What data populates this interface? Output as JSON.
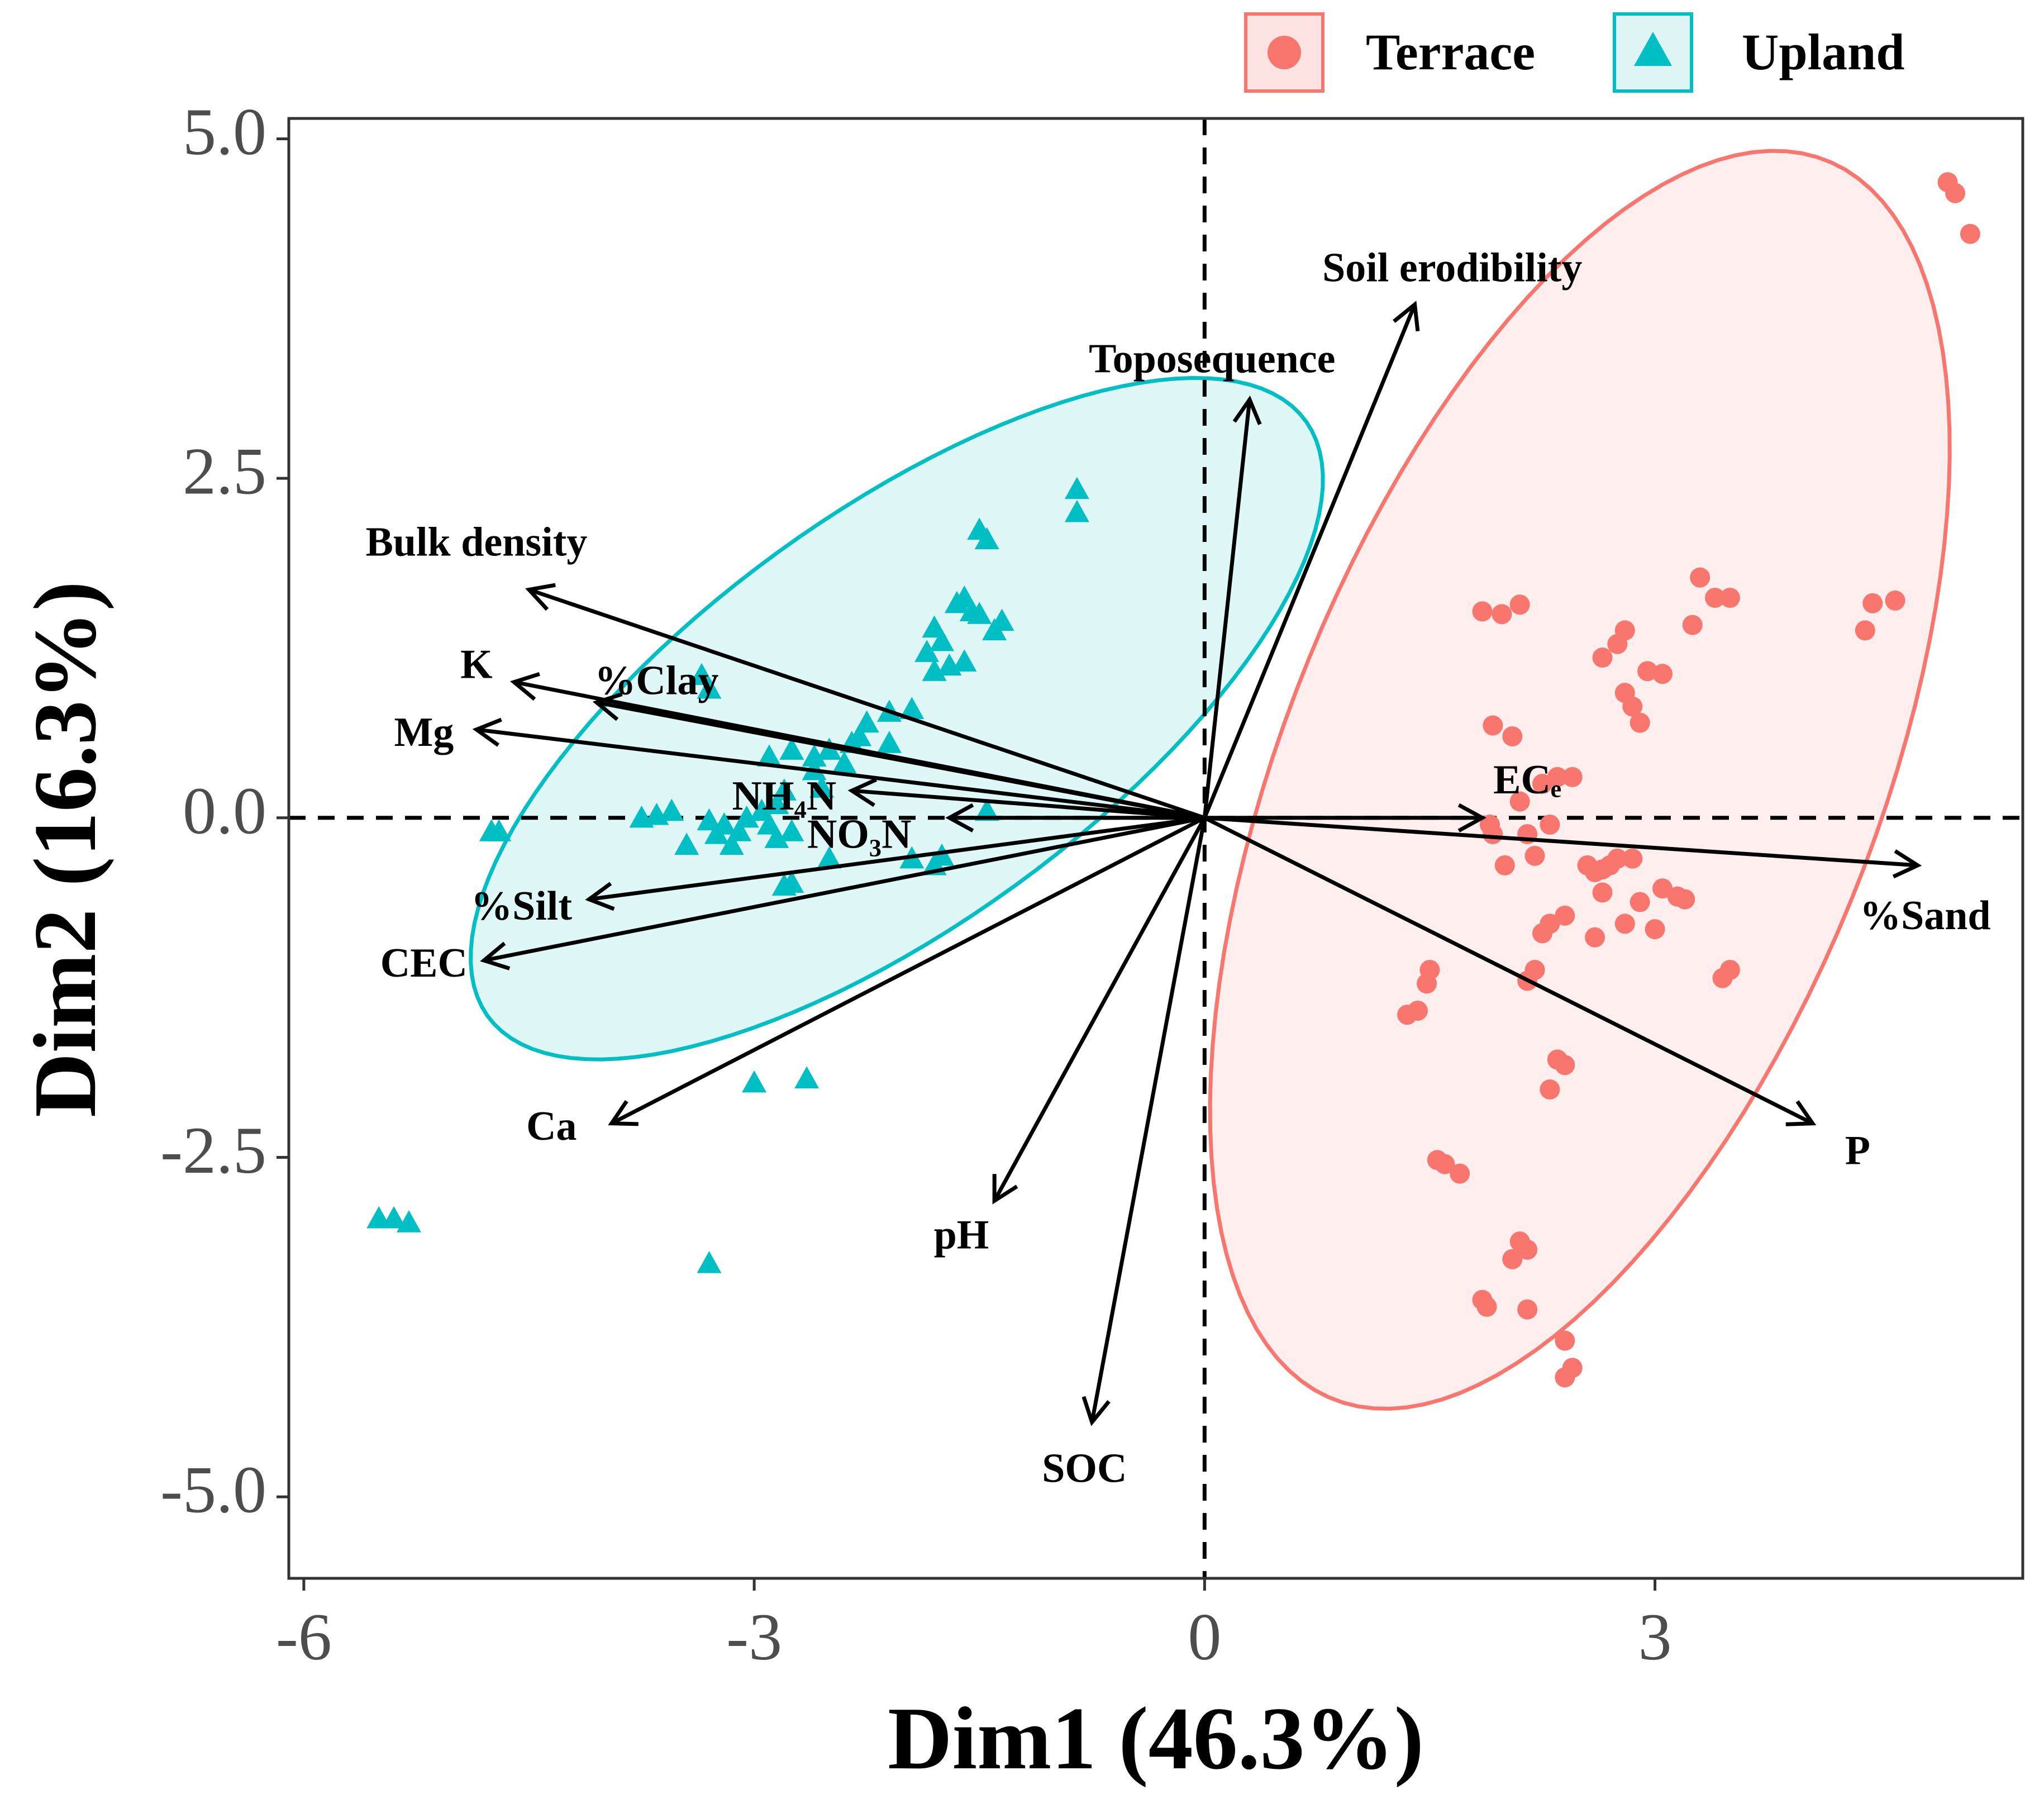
{
  "chart_data": {
    "type": "scatter",
    "subtype": "PCA biplot",
    "xlabel": "Dim1 (46.3%)",
    "ylabel": "Dim2 (16.3%)",
    "xlim": [
      -6.1,
      5.45
    ],
    "ylim": [
      -5.6,
      5.15
    ],
    "x_ticks": [
      -6,
      -3,
      0,
      3
    ],
    "x_tick_labels": [
      "-6",
      "-3",
      "0",
      "3"
    ],
    "y_ticks": [
      5,
      2.5,
      0,
      -2.5,
      -5
    ],
    "y_tick_labels": [
      "5.0",
      "2.5",
      "0.0",
      "-2.5",
      "-5.0"
    ],
    "grid": false,
    "legend_position": "top-right",
    "colors": {
      "Terrace": "#F8766D",
      "Upland": "#00BFC4"
    },
    "series": [
      {
        "name": "Terrace",
        "marker": "circle",
        "ellipse": {
          "cx": 2.5,
          "cy": 0.28,
          "rx": 4.85,
          "ry": 2.0,
          "angle_deg": 71
        },
        "points": [
          [
            4.95,
            4.68
          ],
          [
            5.0,
            4.6
          ],
          [
            5.1,
            4.3
          ],
          [
            1.85,
            1.52
          ],
          [
            1.98,
            1.5
          ],
          [
            2.1,
            1.57
          ],
          [
            3.3,
            1.77
          ],
          [
            3.4,
            1.62
          ],
          [
            3.5,
            1.62
          ],
          [
            4.45,
            1.58
          ],
          [
            4.6,
            1.6
          ],
          [
            3.25,
            1.42
          ],
          [
            4.4,
            1.38
          ],
          [
            2.8,
            1.38
          ],
          [
            2.75,
            1.28
          ],
          [
            2.65,
            1.18
          ],
          [
            2.95,
            1.08
          ],
          [
            3.05,
            1.06
          ],
          [
            2.8,
            0.92
          ],
          [
            2.85,
            0.82
          ],
          [
            2.9,
            0.7
          ],
          [
            1.92,
            0.68
          ],
          [
            2.05,
            0.6
          ],
          [
            2.1,
            0.12
          ],
          [
            2.25,
            0.25
          ],
          [
            2.35,
            0.3
          ],
          [
            2.45,
            0.3
          ],
          [
            2.3,
            -0.05
          ],
          [
            1.9,
            -0.05
          ],
          [
            1.92,
            -0.12
          ],
          [
            2.15,
            -0.12
          ],
          [
            2.55,
            -0.35
          ],
          [
            2.6,
            -0.4
          ],
          [
            2.65,
            -0.38
          ],
          [
            2.7,
            -0.35
          ],
          [
            2.75,
            -0.3
          ],
          [
            2.85,
            -0.3
          ],
          [
            2.0,
            -0.35
          ],
          [
            2.2,
            -0.28
          ],
          [
            2.65,
            -0.55
          ],
          [
            3.05,
            -0.52
          ],
          [
            3.15,
            -0.58
          ],
          [
            3.2,
            -0.6
          ],
          [
            2.9,
            -0.62
          ],
          [
            2.4,
            -0.72
          ],
          [
            2.3,
            -0.78
          ],
          [
            2.25,
            -0.85
          ],
          [
            2.6,
            -0.88
          ],
          [
            2.8,
            -0.78
          ],
          [
            3.0,
            -0.82
          ],
          [
            3.5,
            -1.12
          ],
          [
            3.45,
            -1.18
          ],
          [
            2.2,
            -1.12
          ],
          [
            2.15,
            -1.2
          ],
          [
            1.5,
            -1.12
          ],
          [
            1.48,
            -1.22
          ],
          [
            1.42,
            -1.42
          ],
          [
            1.35,
            -1.45
          ],
          [
            2.35,
            -1.78
          ],
          [
            2.4,
            -1.82
          ],
          [
            2.3,
            -2.0
          ],
          [
            1.55,
            -2.52
          ],
          [
            1.6,
            -2.55
          ],
          [
            1.7,
            -2.62
          ],
          [
            2.1,
            -3.12
          ],
          [
            2.15,
            -3.18
          ],
          [
            2.05,
            -3.25
          ],
          [
            1.85,
            -3.55
          ],
          [
            1.88,
            -3.6
          ],
          [
            2.15,
            -3.62
          ],
          [
            2.4,
            -3.85
          ],
          [
            2.45,
            -4.05
          ],
          [
            2.4,
            -4.12
          ]
        ]
      },
      {
        "name": "Upland",
        "marker": "triangle",
        "ellipse": {
          "cx": -2.05,
          "cy": 0.73,
          "rx": 3.5,
          "ry": 1.45,
          "angle_deg": 40
        },
        "points": [
          [
            -0.85,
            2.42
          ],
          [
            -0.85,
            2.25
          ],
          [
            -1.5,
            2.12
          ],
          [
            -1.45,
            2.05
          ],
          [
            -1.6,
            1.62
          ],
          [
            -1.65,
            1.58
          ],
          [
            -1.55,
            1.52
          ],
          [
            -1.5,
            1.5
          ],
          [
            -1.35,
            1.45
          ],
          [
            -1.4,
            1.38
          ],
          [
            -1.8,
            1.4
          ],
          [
            -1.75,
            1.3
          ],
          [
            -1.85,
            1.22
          ],
          [
            -1.7,
            1.12
          ],
          [
            -1.8,
            1.08
          ],
          [
            -1.6,
            1.15
          ],
          [
            -3.35,
            1.05
          ],
          [
            -3.3,
            0.95
          ],
          [
            -1.95,
            0.8
          ],
          [
            -2.1,
            0.78
          ],
          [
            -2.25,
            0.7
          ],
          [
            -2.3,
            0.6
          ],
          [
            -2.1,
            0.55
          ],
          [
            -2.35,
            0.55
          ],
          [
            -2.5,
            0.5
          ],
          [
            -2.6,
            0.45
          ],
          [
            -2.75,
            0.5
          ],
          [
            -2.9,
            0.45
          ],
          [
            -2.4,
            0.4
          ],
          [
            -2.6,
            0.35
          ],
          [
            -2.8,
            0.2
          ],
          [
            -2.55,
            0.22
          ],
          [
            -2.85,
            0.1
          ],
          [
            -2.95,
            0.05
          ],
          [
            -3.05,
            0.0
          ],
          [
            -2.9,
            -0.05
          ],
          [
            -3.2,
            -0.05
          ],
          [
            -3.25,
            -0.12
          ],
          [
            -3.3,
            -0.02
          ],
          [
            -3.1,
            -0.1
          ],
          [
            -3.75,
            0.0
          ],
          [
            -3.65,
            0.02
          ],
          [
            -3.55,
            0.05
          ],
          [
            -1.45,
            0.05
          ],
          [
            -4.7,
            -0.1
          ],
          [
            -4.75,
            -0.1
          ],
          [
            -3.45,
            -0.2
          ],
          [
            -3.15,
            -0.2
          ],
          [
            -2.85,
            -0.15
          ],
          [
            -2.75,
            -0.1
          ],
          [
            -2.5,
            -0.3
          ],
          [
            -1.95,
            -0.3
          ],
          [
            -1.8,
            -0.35
          ],
          [
            -1.75,
            -0.28
          ],
          [
            -2.8,
            -0.5
          ],
          [
            -2.75,
            -0.48
          ],
          [
            -3.0,
            -1.95
          ],
          [
            -2.65,
            -1.92
          ],
          [
            -5.5,
            -2.95
          ],
          [
            -5.4,
            -2.95
          ],
          [
            -5.3,
            -2.98
          ],
          [
            -3.3,
            -3.28
          ]
        ]
      }
    ],
    "variables": [
      {
        "name": "Soil erodibility",
        "x": 1.4,
        "y": 3.78,
        "label_x": 1.65,
        "label_y": 4.02,
        "anchor": "middle"
      },
      {
        "name": "Toposequence",
        "x": 0.3,
        "y": 3.08,
        "label_x": 0.05,
        "label_y": 3.35,
        "anchor": "middle"
      },
      {
        "name": "Bulk density",
        "x": -4.5,
        "y": 1.68,
        "label_x": -4.85,
        "label_y": 2.0,
        "anchor": "middle"
      },
      {
        "name": "K",
        "x": -4.6,
        "y": 1.0,
        "label_x": -4.85,
        "label_y": 1.1,
        "anchor": "middle"
      },
      {
        "name": "%Clay",
        "x": -4.05,
        "y": 0.85,
        "label_x": -3.65,
        "label_y": 0.98,
        "anchor": "middle"
      },
      {
        "name": "Mg",
        "x": -4.85,
        "y": 0.65,
        "label_x": -5.2,
        "label_y": 0.6,
        "anchor": "middle"
      },
      {
        "name": "NH₄N",
        "x": -2.35,
        "y": 0.2,
        "label_x": -2.8,
        "label_y": 0.13,
        "anchor": "middle"
      },
      {
        "name": "NO₃N",
        "x": -1.7,
        "y": 0.0,
        "label_x": -2.3,
        "label_y": -0.15,
        "anchor": "middle"
      },
      {
        "name": "%Silt",
        "x": -4.1,
        "y": -0.6,
        "label_x": -4.55,
        "label_y": -0.68,
        "anchor": "middle"
      },
      {
        "name": "CEC",
        "x": -4.8,
        "y": -1.05,
        "label_x": -5.2,
        "label_y": -1.1,
        "anchor": "middle"
      },
      {
        "name": "Ca",
        "x": -3.95,
        "y": -2.25,
        "label_x": -4.35,
        "label_y": -2.3,
        "anchor": "middle"
      },
      {
        "name": "pH",
        "x": -1.4,
        "y": -2.82,
        "label_x": -1.62,
        "label_y": -3.1,
        "anchor": "middle"
      },
      {
        "name": "SOC",
        "x": -0.75,
        "y": -4.45,
        "label_x": -0.8,
        "label_y": -4.82,
        "anchor": "middle"
      },
      {
        "name": "ECₑ",
        "x": 1.85,
        "y": 0.0,
        "label_x": 2.15,
        "label_y": 0.25,
        "anchor": "middle"
      },
      {
        "name": "%Sand",
        "x": 4.75,
        "y": -0.35,
        "label_x": 4.8,
        "label_y": -0.75,
        "anchor": "middle"
      },
      {
        "name": "P",
        "x": 4.05,
        "y": -2.25,
        "label_x": 4.35,
        "label_y": -2.48,
        "anchor": "middle"
      }
    ]
  }
}
